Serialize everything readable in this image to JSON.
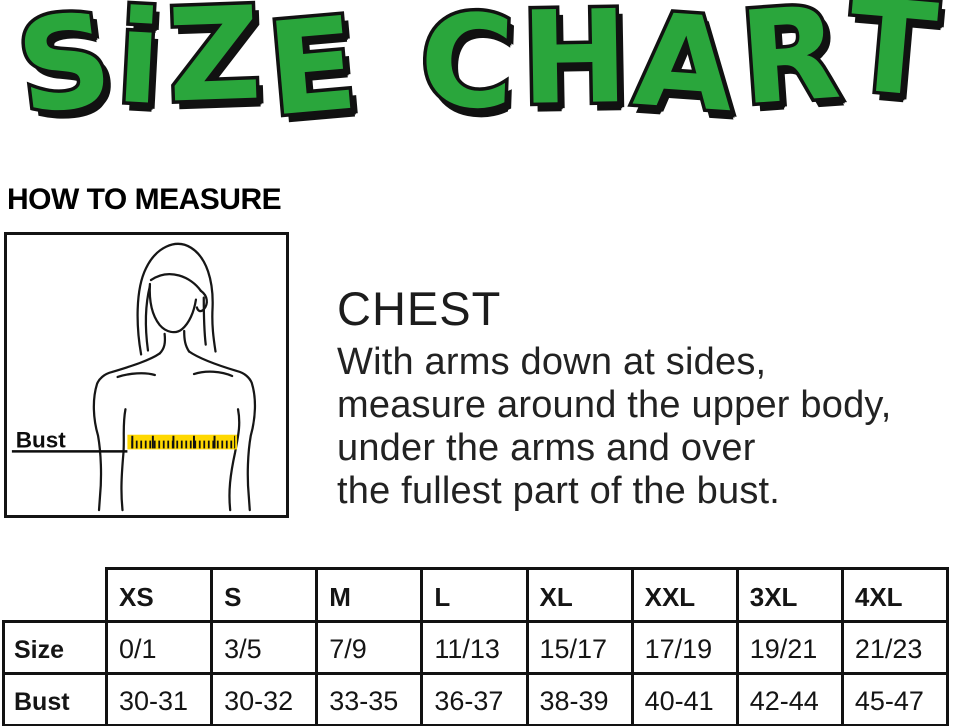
{
  "title": {
    "word1": "SiZE",
    "word2": "CHART"
  },
  "colors": {
    "green": "#2aa63c",
    "outline": "#111111",
    "tape": "#ffd800"
  },
  "measure": {
    "heading": "HOW TO MEASURE",
    "bust_label": "Bust"
  },
  "instructions": {
    "heading": "CHEST",
    "lines": [
      "With arms down at sides,",
      "measure around the upper body,",
      "under the arms and over",
      "the fullest part of the bust."
    ]
  },
  "chart_data": {
    "type": "table",
    "title": "SIZE CHART",
    "columns": [
      "XS",
      "S",
      "M",
      "L",
      "XL",
      "XXL",
      "3XL",
      "4XL"
    ],
    "rows": [
      {
        "label": "Size",
        "values": [
          "0/1",
          "3/5",
          "7/9",
          "11/13",
          "15/17",
          "17/19",
          "19/21",
          "21/23"
        ]
      },
      {
        "label": "Bust",
        "values": [
          "30-31",
          "30-32",
          "33-35",
          "36-37",
          "38-39",
          "40-41",
          "42-44",
          "45-47"
        ]
      }
    ]
  }
}
